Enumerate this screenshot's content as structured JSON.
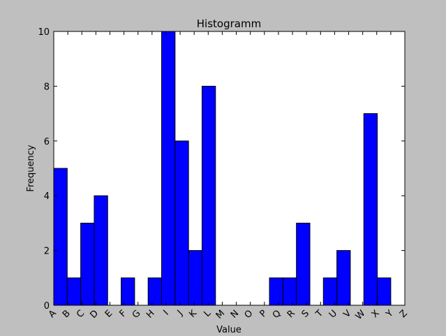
{
  "chart_data": {
    "type": "histogram",
    "title": "Histogramm",
    "x_label": "Value",
    "y_label": "Frequency",
    "bins": [
      0,
      0.96,
      1.92,
      2.88,
      3.84,
      4.8,
      5.76,
      6.72,
      7.68,
      8.64,
      9.6,
      10.56,
      11.52,
      12.48,
      13.44,
      14.4,
      15.36,
      16.32,
      17.28,
      18.24,
      19.2,
      20.16,
      21.12,
      22.08,
      23.04,
      24
    ],
    "values": [
      5,
      1,
      3,
      4,
      0,
      1,
      0,
      1,
      10,
      6,
      2,
      8,
      0,
      0,
      0,
      0,
      1,
      1,
      3,
      0,
      1,
      2,
      0,
      7,
      1
    ],
    "color": "#0000ff",
    "xlim": [
      0,
      25
    ],
    "xticks": [
      {
        "value": 0,
        "label": "A"
      },
      {
        "value": 1,
        "label": "B"
      },
      {
        "value": 2,
        "label": "C"
      },
      {
        "value": 3,
        "label": "D"
      },
      {
        "value": 4,
        "label": "E"
      },
      {
        "value": 5,
        "label": "F"
      },
      {
        "value": 6,
        "label": "G"
      },
      {
        "value": 7,
        "label": "H"
      },
      {
        "value": 8,
        "label": "I"
      },
      {
        "value": 9,
        "label": "J"
      },
      {
        "value": 10,
        "label": "K"
      },
      {
        "value": 11,
        "label": "L"
      },
      {
        "value": 12,
        "label": "M"
      },
      {
        "value": 13,
        "label": "N"
      },
      {
        "value": 14,
        "label": "O"
      },
      {
        "value": 15,
        "label": "P"
      },
      {
        "value": 16,
        "label": "Q"
      },
      {
        "value": 17,
        "label": "R"
      },
      {
        "value": 18,
        "label": "S"
      },
      {
        "value": 19,
        "label": "T"
      },
      {
        "value": 20,
        "label": "U"
      },
      {
        "value": 21,
        "label": "V"
      },
      {
        "value": 22,
        "label": "W"
      },
      {
        "value": 23,
        "label": "X"
      },
      {
        "value": 24,
        "label": "Y"
      },
      {
        "value": 25,
        "label": "Z"
      }
    ],
    "ylim": [
      0,
      10
    ],
    "yticks": [
      0,
      2,
      4,
      6,
      8,
      10
    ],
    "grid": false
  }
}
